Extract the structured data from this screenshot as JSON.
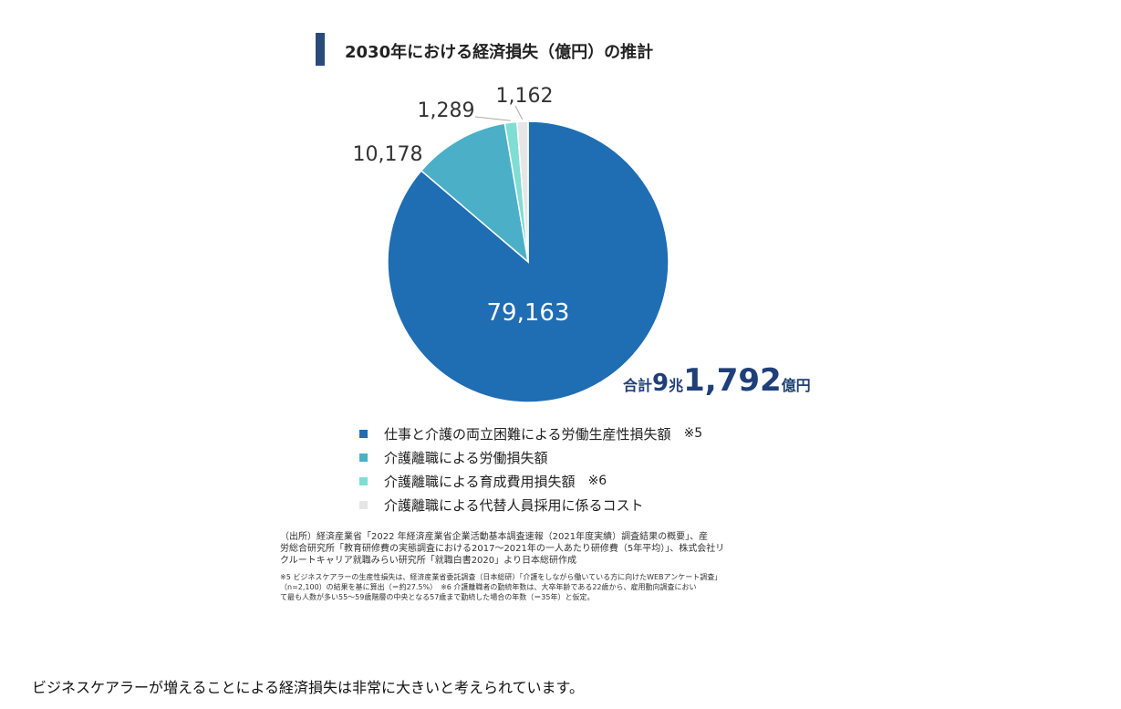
{
  "chart_data": {
    "type": "pie",
    "title": "2030年における経済損失（億円）の推計",
    "unit": "億円",
    "slices": [
      {
        "label": "仕事と介護の両立困難による労働生産性損失額",
        "note": "※5",
        "value": 79163,
        "display": "79,163",
        "color": "#1f6db3"
      },
      {
        "label": "介護離職による労働損失額",
        "note": "",
        "value": 10178,
        "display": "10,178",
        "color": "#4bafc8"
      },
      {
        "label": "介護離職による育成費用損失額",
        "note": "※6",
        "value": 1289,
        "display": "1,289",
        "color": "#7fddd4"
      },
      {
        "label": "介護離職による代替人員採用に係るコスト",
        "note": "",
        "value": 1162,
        "display": "1,162",
        "color": "#e6e6e6"
      }
    ],
    "total": {
      "prefix": "合計",
      "trillion": "9",
      "trillion_unit": "兆",
      "rest": "1,792",
      "rest_unit": "億円"
    }
  },
  "source": {
    "lines": [
      "（出所）経済産業省「2022 年経済産業省企業活動基本調査速報（2021年度実績）調査結果の概要」、産",
      "労総合研究所「教育研修費の実態調査における2017～2021年の一人あたり研修費（5年平均）」、株式会社リ",
      "クルートキャリア就職みらい研究所「就職白書2020」より日本総研作成"
    ],
    "footnotes": [
      "※5 ビジネスケアラーの生産性損失は、経済産業省委託調査（日本総研）「介護をしながら働いている方に向けたWEBアンケート調査」",
      "（n=2,100）の結果を基に算出（＝約27.5%）　※6 介護離職者の勤続年数は、大卒年齢である22歳から、雇用動向調査におい",
      "て最も人数が多い55～59歳階層の中央となる57歳まで勤続した場合の年数（＝35年）と仮定。"
    ]
  },
  "caption": "ビジネスケアラーが増えることによる経済損失は非常に大きいと考えられています。"
}
